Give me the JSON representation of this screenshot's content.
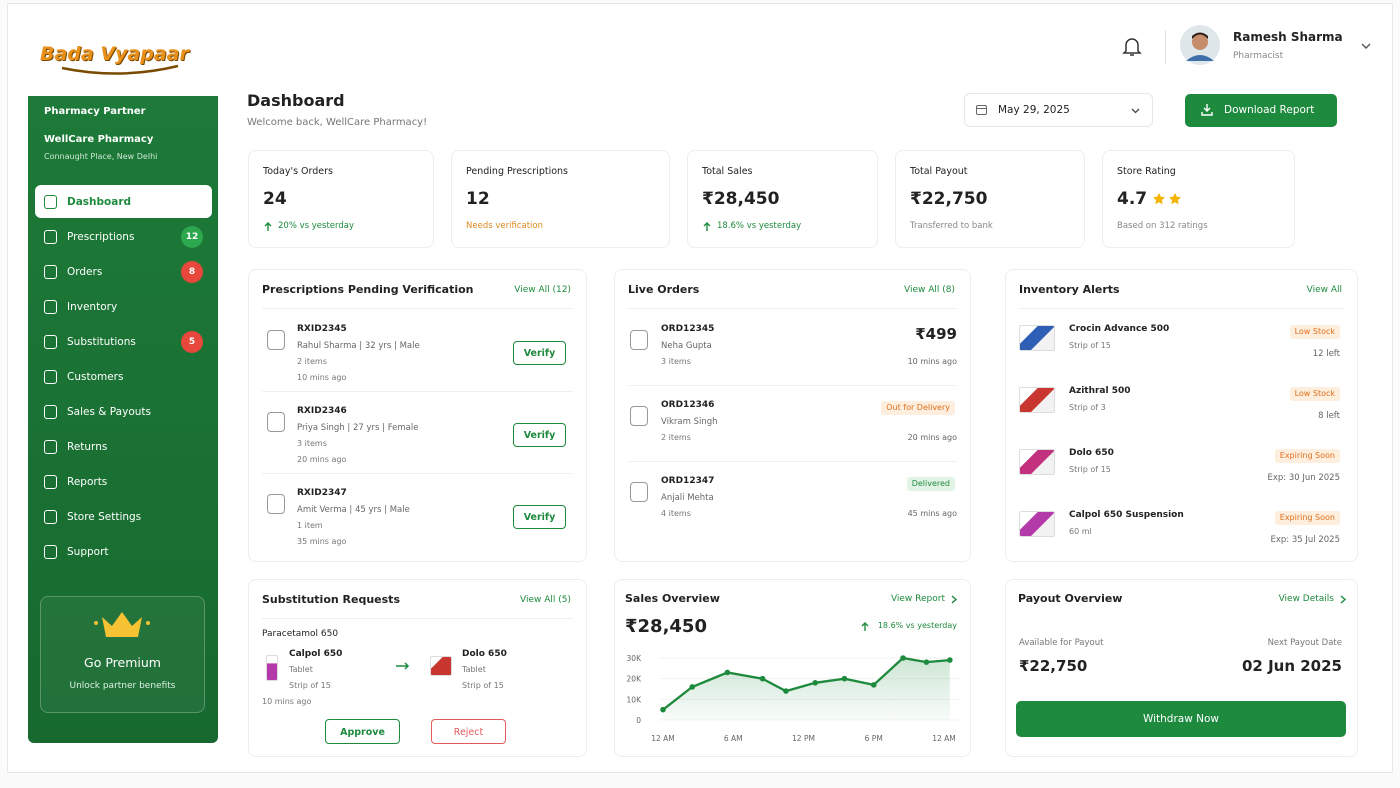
{
  "header": {
    "logo": "Bada Vyapaar",
    "user": {
      "name": "Ramesh Sharma",
      "role": "Pharmacist"
    }
  },
  "sidebar": {
    "partner_label": "Pharmacy Partner",
    "store_name": "WellCare Pharmacy",
    "store_location": "Connaught Place, New Delhi",
    "menu": [
      {
        "label": "Dashboard"
      },
      {
        "label": "Prescriptions",
        "badge": 12
      },
      {
        "label": "Orders",
        "badge": 8
      },
      {
        "label": "Inventory"
      },
      {
        "label": "Substitutions",
        "badge": 5
      },
      {
        "label": "Customers"
      },
      {
        "label": "Sales & Payouts"
      },
      {
        "label": "Returns"
      },
      {
        "label": "Reports"
      },
      {
        "label": "Store Settings"
      },
      {
        "label": "Support"
      }
    ],
    "premium": {
      "title": "Go Premium",
      "subtitle": "Unlock partner benefits"
    }
  },
  "page": {
    "title": "Dashboard",
    "subtitle": "Welcome back, WellCare Pharmacy!",
    "date": "May 29, 2025",
    "download_button": "Download Report"
  },
  "stats": [
    {
      "label": "Today's Orders",
      "value": "24",
      "note": "20% vs yesterday"
    },
    {
      "label": "Pending Prescriptions",
      "value": "12",
      "note": "Needs verification"
    },
    {
      "label": "Total Sales",
      "value": "₹28,450",
      "note": "18.6% vs yesterday"
    },
    {
      "label": "Total Payout",
      "value": "₹22,750",
      "note": "Transferred to bank"
    },
    {
      "label": "Store Rating",
      "value": "4.7",
      "note": "Based on 312 ratings"
    }
  ],
  "prescriptions": {
    "title": "Prescriptions Pending Verification",
    "link": "View All (12)",
    "items": [
      {
        "id": "RXID2345",
        "details": "Rahul Sharma | 32 yrs | Male",
        "items": "2 items",
        "time": "10 mins ago",
        "action": "Verify"
      },
      {
        "id": "RXID2346",
        "details": "Priya Singh | 27 yrs | Female",
        "items": "3 items",
        "time": "20 mins ago",
        "action": "Verify"
      },
      {
        "id": "RXID2347",
        "details": "Amit Verma | 45 yrs | Male",
        "items": "1 item",
        "time": "35 mins ago",
        "action": "Verify"
      }
    ]
  },
  "live_orders": {
    "title": "Live Orders",
    "link": "View All (8)",
    "items": [
      {
        "id": "ORD12345",
        "name": "Neha Gupta",
        "items": "3 items",
        "amount": "₹499",
        "time": "10 mins ago"
      },
      {
        "id": "ORD12346",
        "name": "Vikram Singh",
        "items": "2 items",
        "status": "Out for Delivery",
        "time": "20 mins ago"
      },
      {
        "id": "ORD12347",
        "name": "Anjali Mehta",
        "items": "4 items",
        "status": "Delivered",
        "time": "45 mins ago"
      }
    ]
  },
  "inventory": {
    "title": "Inventory Alerts",
    "link": "View All",
    "items": [
      {
        "name": "Crocin Advance 500",
        "pack": "Strip of 15",
        "status": "Low Stock",
        "detail": "12 left"
      },
      {
        "name": "Azithral 500",
        "pack": "Strip of 3",
        "status": "Low Stock",
        "detail": "8 left"
      },
      {
        "name": "Dolo 650",
        "pack": "Strip of 15",
        "status": "Expiring Soon",
        "detail": "Exp: 30 Jun 2025"
      },
      {
        "name": "Calpol 650 Suspension",
        "pack": "60 ml",
        "status": "Expiring Soon",
        "detail": "Exp: 35 Jul 2025"
      }
    ]
  },
  "substitution": {
    "title": "Substitution Requests",
    "link": "View All (5)",
    "medicine": "Paracetamol 650",
    "from": {
      "name": "Calpol 650",
      "form": "Tablet",
      "pack": "Strip of 15"
    },
    "to": {
      "name": "Dolo 650",
      "form": "Tablet",
      "pack": "Strip of 15"
    },
    "time": "10 mins ago",
    "approve": "Approve",
    "reject": "Reject"
  },
  "sales_overview": {
    "title": "Sales Overview",
    "link": "View Report",
    "total": "₹28,450",
    "change": "18.6% vs yesterday"
  },
  "chart_data": {
    "type": "line",
    "x": [
      0,
      2.5,
      5.5,
      8.5,
      10.5,
      13,
      15.5,
      18,
      20.5,
      22.5,
      24.5
    ],
    "values": [
      5000,
      16000,
      23000,
      20000,
      14000,
      18000,
      20000,
      17000,
      30000,
      28000,
      29000
    ],
    "color": "#1e8a3e",
    "xlim": [
      0,
      25
    ],
    "xticks": [
      {
        "value": 0,
        "label": "12 AM"
      },
      {
        "value": 6,
        "label": "6 AM"
      },
      {
        "value": 12,
        "label": "12 PM"
      },
      {
        "value": 18,
        "label": "6 PM"
      },
      {
        "value": 24,
        "label": "12 AM"
      }
    ],
    "ylim": [
      0,
      30000
    ],
    "yticks": [
      0,
      {
        "value": 10000,
        "label": "10K"
      },
      {
        "value": 20000,
        "label": "20K"
      },
      {
        "value": 30000,
        "label": "30K"
      }
    ]
  },
  "payout": {
    "title": "Payout Overview",
    "link": "View Details",
    "available_label": "Available for Payout",
    "available": "₹22,750",
    "next_label": "Next Payout Date",
    "next_date": "02 Jun 2025",
    "button": "Withdraw Now"
  }
}
